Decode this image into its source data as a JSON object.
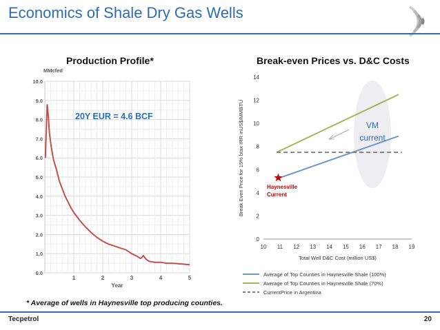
{
  "slide": {
    "title": "Economics of Shale Dry Gas Wells",
    "footnote": "* Average of wells in Haynesville top producing counties.",
    "footer_left": "Tecpetrol",
    "page_number": "20"
  },
  "colors": {
    "title_blue": "#2b6cb5",
    "decline_red": "#c0504d",
    "series_blue": "#6f95c9",
    "series_green": "#9bbb59",
    "dashed_gray": "#808080",
    "annotation_red": "#c00000",
    "vm_text_blue": "#2b6cb5"
  },
  "chart_data": [
    {
      "type": "line",
      "panel_title": "Production Profile*",
      "ylabel": "MMcfed",
      "xlabel": "Year",
      "annotation": "20Y EUR = 4.6 BCF",
      "xlim": [
        0,
        5
      ],
      "ylim": [
        0,
        10
      ],
      "x_ticks": [
        "1",
        "2",
        "3",
        "4",
        "5"
      ],
      "y_ticks": [
        "0.0",
        "1.0",
        "2.0",
        "3.0",
        "4.0",
        "5.0",
        "6.0",
        "7.0",
        "8.0",
        "9.0",
        "10.0"
      ],
      "grid": true,
      "series": [
        {
          "x": [
            0.02,
            0.08,
            0.12,
            0.16,
            0.22,
            0.3,
            0.4,
            0.5,
            0.6,
            0.7,
            0.8,
            0.9,
            1.0,
            1.2,
            1.4,
            1.6,
            1.8,
            2.0,
            2.2,
            2.4,
            2.6,
            2.8,
            3.0,
            3.2,
            3.3,
            3.35,
            3.4,
            3.5,
            3.6,
            3.8,
            4.0,
            4.2,
            4.4,
            4.6,
            4.8,
            5.0
          ],
          "y": [
            6.0,
            8.8,
            8.2,
            7.3,
            6.6,
            5.9,
            5.4,
            4.8,
            4.4,
            4.0,
            3.7,
            3.4,
            3.15,
            2.75,
            2.4,
            2.1,
            1.85,
            1.65,
            1.5,
            1.4,
            1.3,
            1.2,
            1.0,
            0.85,
            0.75,
            0.8,
            0.9,
            0.7,
            0.6,
            0.55,
            0.55,
            0.5,
            0.5,
            0.48,
            0.45,
            0.42
          ]
        }
      ]
    },
    {
      "type": "line",
      "title": "Break-even Prices vs. D&C Costs",
      "xlabel": "Total Well D&C Cost (million US$)",
      "ylabel": "Break Even Price for 15% btax IRR inUS$/MMBTU",
      "xlim": [
        10,
        19
      ],
      "ylim": [
        0,
        14
      ],
      "x_ticks": [
        10,
        11,
        12,
        13,
        14,
        15,
        16,
        17,
        18,
        19
      ],
      "y_ticks": [
        0,
        2,
        4,
        6,
        8,
        10,
        12,
        14
      ],
      "grid": false,
      "legend_position": "bottom",
      "series": [
        {
          "name": "Average of Top Counties in Haynesville Shale (100%)",
          "x": [
            10.8,
            18.2
          ],
          "y": [
            5.2,
            8.9
          ],
          "style": "solid"
        },
        {
          "name": "Average of Top Counties in Haynesville Shale (70%)",
          "x": [
            10.8,
            18.2
          ],
          "y": [
            7.5,
            12.5
          ],
          "style": "solid"
        },
        {
          "name": "CurrentPrice in Argentina",
          "x": [
            10.8,
            18.4
          ],
          "y": [
            7.5,
            7.5
          ],
          "style": "dashed"
        }
      ],
      "annotations": {
        "haynesville_label": "Haynesville Current",
        "haynesville_point": {
          "x": 10.9,
          "y": 5.3
        },
        "vm_label": "VM current"
      }
    }
  ]
}
